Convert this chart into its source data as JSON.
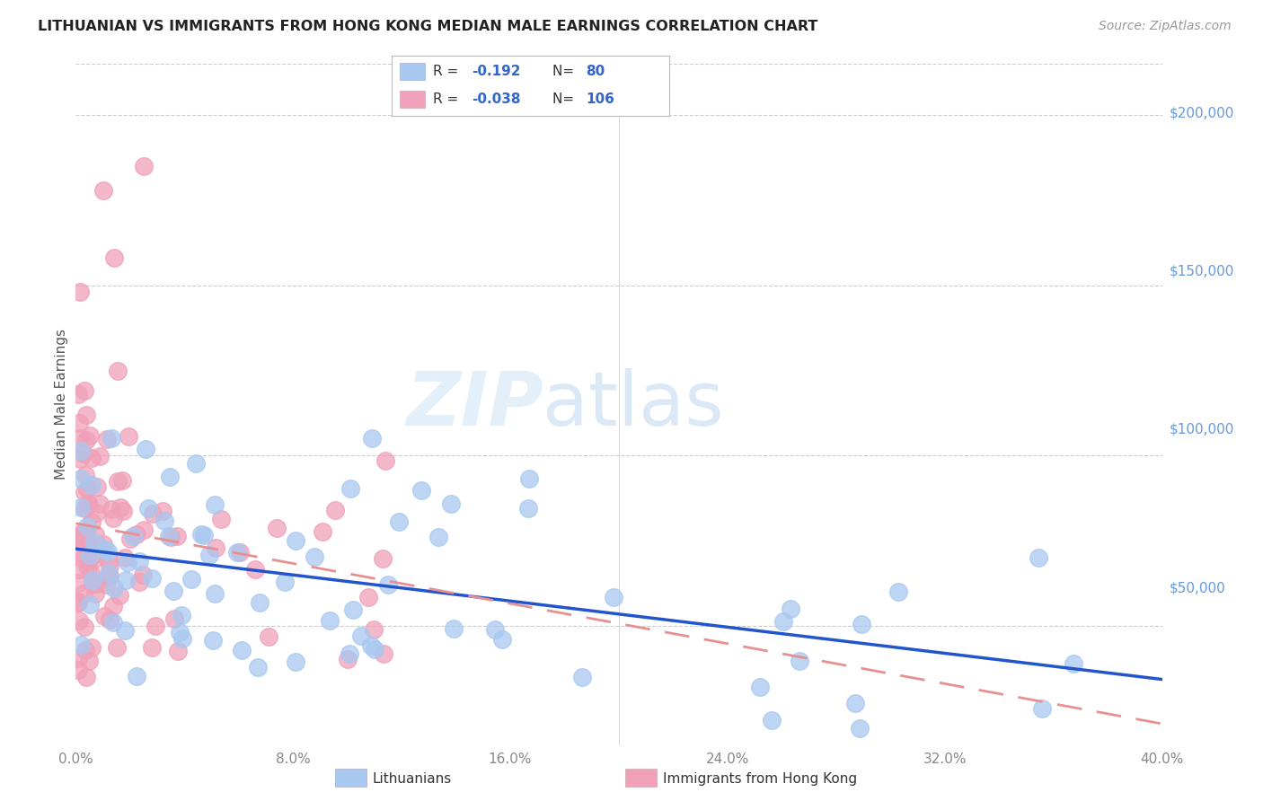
{
  "title": "LITHUANIAN VS IMMIGRANTS FROM HONG KONG MEDIAN MALE EARNINGS CORRELATION CHART",
  "source": "Source: ZipAtlas.com",
  "ylabel": "Median Male Earnings",
  "right_yticklabels": [
    "",
    "$50,000",
    "$100,000",
    "$150,000",
    "$200,000"
  ],
  "right_ytick_vals": [
    0,
    50000,
    100000,
    150000,
    200000
  ],
  "xlim": [
    0.0,
    0.4
  ],
  "ylim": [
    15000,
    215000
  ],
  "watermark_zip": "ZIP",
  "watermark_atlas": "atlas",
  "blue_color": "#a8c8f0",
  "pink_color": "#f0a0b8",
  "trendline_blue": "#2255cc",
  "trendline_pink": "#e89090",
  "background_color": "#ffffff",
  "grid_color": "#cccccc",
  "legend_r1_val": "-0.192",
  "legend_n1_val": "80",
  "legend_r2_val": "-0.038",
  "legend_n2_val": "106",
  "blue_label": "Lithuanians",
  "pink_label": "Immigrants from Hong Kong",
  "xticks": [
    0.0,
    0.08,
    0.16,
    0.24,
    0.32,
    0.4
  ],
  "xticklabels": [
    "0.0%",
    "8.0%",
    "16.0%",
    "24.0%",
    "32.0%",
    "40.0%"
  ],
  "blue_seed": 12,
  "pink_seed": 77
}
